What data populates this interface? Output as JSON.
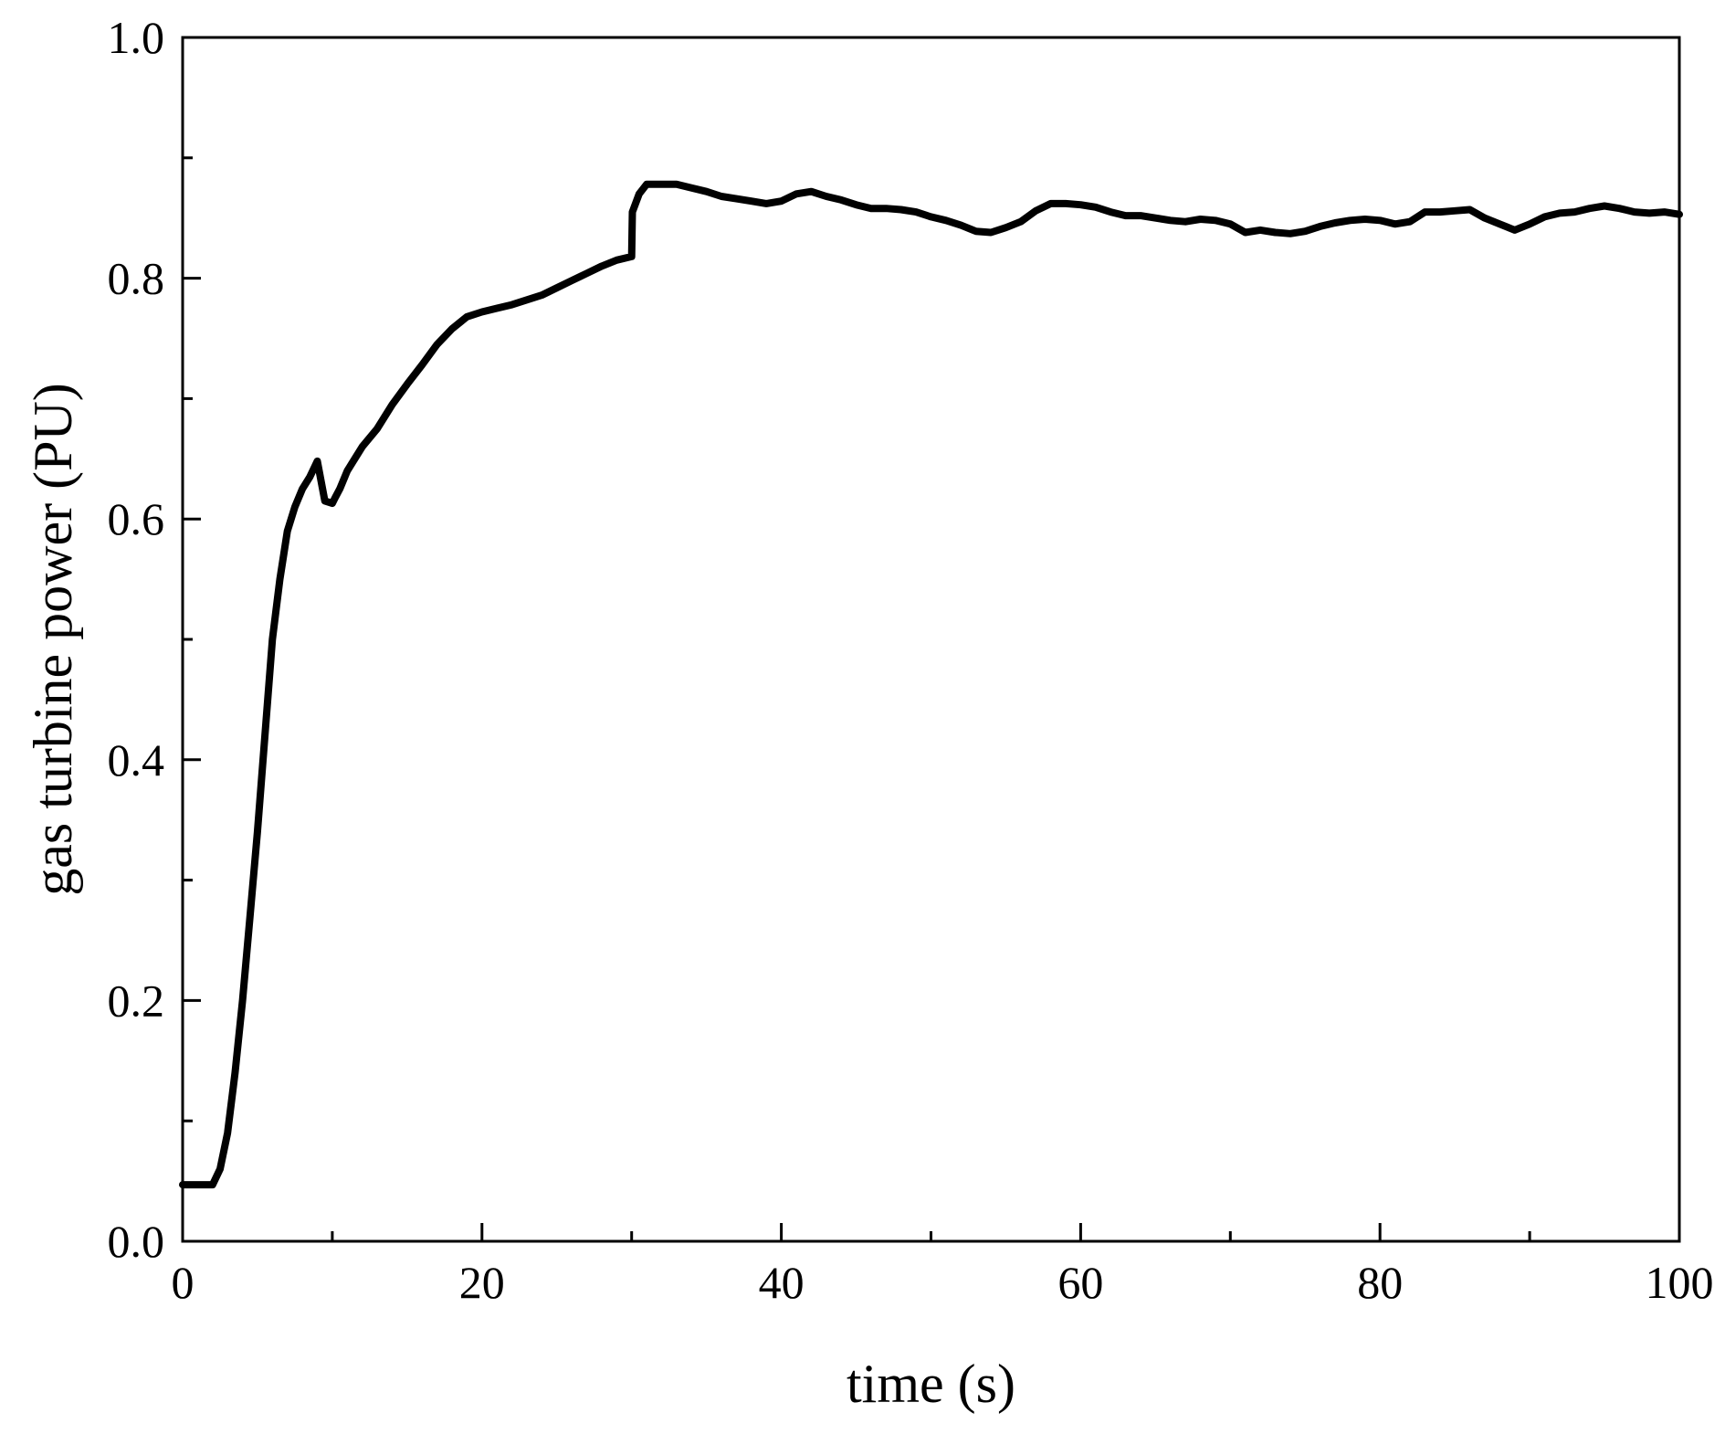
{
  "chart_data": {
    "type": "line",
    "title": "",
    "xlabel": "time (s)",
    "ylabel": "gas turbine power (PU)",
    "xlim": [
      0,
      100
    ],
    "ylim": [
      0.0,
      1.0
    ],
    "x_ticks": [
      0,
      20,
      40,
      60,
      80,
      100
    ],
    "x_tick_labels": [
      "0",
      "20",
      "40",
      "60",
      "80",
      "100"
    ],
    "x_minor_ticks": [
      10,
      30,
      50,
      70,
      90
    ],
    "y_ticks": [
      0.0,
      0.2,
      0.4,
      0.6,
      0.8,
      1.0
    ],
    "y_tick_labels": [
      "0.0",
      "0.2",
      "0.4",
      "0.6",
      "0.8",
      "1.0"
    ],
    "y_minor_ticks": [
      0.1,
      0.3,
      0.5,
      0.7,
      0.9
    ],
    "grid": false,
    "legend": "none",
    "series": [
      {
        "color": "#000000",
        "x": [
          0,
          2,
          2.5,
          3,
          3.5,
          4,
          4.5,
          5,
          5.5,
          6,
          6.5,
          7,
          7.5,
          8,
          8.5,
          9,
          9.5,
          10,
          10.2,
          10.5,
          11,
          12,
          13,
          14,
          15,
          16,
          17,
          18,
          19,
          20,
          21,
          22,
          23,
          24,
          25,
          26,
          27,
          28,
          29,
          30,
          30.05,
          30.5,
          31,
          32,
          33,
          34,
          35,
          36,
          37,
          38,
          39,
          40,
          41,
          42,
          43,
          44,
          45,
          46,
          47,
          48,
          49,
          50,
          51,
          52,
          53,
          54,
          55,
          56,
          57,
          58,
          59,
          60,
          61,
          62,
          63,
          64,
          65,
          66,
          67,
          68,
          69,
          70,
          71,
          72,
          73,
          74,
          75,
          76,
          77,
          78,
          79,
          80,
          81,
          82,
          83,
          84,
          85,
          86,
          87,
          88,
          89,
          90,
          91,
          92,
          93,
          94,
          95,
          96,
          97,
          98,
          99,
          100
        ],
        "y": [
          0.047,
          0.047,
          0.06,
          0.09,
          0.14,
          0.2,
          0.27,
          0.34,
          0.42,
          0.5,
          0.55,
          0.59,
          0.61,
          0.625,
          0.635,
          0.648,
          0.615,
          0.613,
          0.618,
          0.625,
          0.64,
          0.66,
          0.675,
          0.695,
          0.712,
          0.728,
          0.745,
          0.758,
          0.768,
          0.772,
          0.775,
          0.778,
          0.782,
          0.786,
          0.792,
          0.798,
          0.804,
          0.81,
          0.815,
          0.818,
          0.855,
          0.87,
          0.878,
          0.878,
          0.878,
          0.875,
          0.872,
          0.868,
          0.866,
          0.864,
          0.862,
          0.864,
          0.87,
          0.872,
          0.868,
          0.865,
          0.861,
          0.858,
          0.858,
          0.857,
          0.855,
          0.851,
          0.848,
          0.844,
          0.839,
          0.838,
          0.842,
          0.847,
          0.856,
          0.862,
          0.862,
          0.861,
          0.859,
          0.855,
          0.852,
          0.852,
          0.85,
          0.848,
          0.847,
          0.849,
          0.848,
          0.845,
          0.838,
          0.84,
          0.838,
          0.837,
          0.839,
          0.843,
          0.846,
          0.848,
          0.849,
          0.848,
          0.845,
          0.847,
          0.855,
          0.855,
          0.856,
          0.857,
          0.85,
          0.845,
          0.84,
          0.845,
          0.851,
          0.854,
          0.855,
          0.858,
          0.86,
          0.858,
          0.855,
          0.854,
          0.855,
          0.853
        ]
      }
    ]
  }
}
